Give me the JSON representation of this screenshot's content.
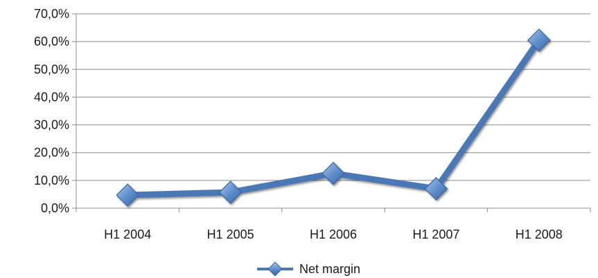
{
  "chart_data": {
    "type": "line",
    "categories": [
      "H1 2004",
      "H1 2005",
      "H1 2006",
      "H1 2007",
      "H1 2008"
    ],
    "series": [
      {
        "name": "Net margin",
        "values": [
          4.7,
          5.7,
          12.5,
          7.0,
          60.5
        ]
      }
    ],
    "y_ticks": [
      "0,0%",
      "10,0%",
      "20,0%",
      "30,0%",
      "40,0%",
      "50,0%",
      "60,0%",
      "70,0%"
    ],
    "ylim": [
      0,
      70
    ],
    "y_unit": "percent",
    "grid": "horizontal",
    "legend_position": "bottom",
    "colors": {
      "series": "#4a78b5",
      "series_edge": "#3a629a",
      "marker_light": "#8fb4e3",
      "grid": "#8c8c8c",
      "axis": "#8c8c8c"
    }
  }
}
